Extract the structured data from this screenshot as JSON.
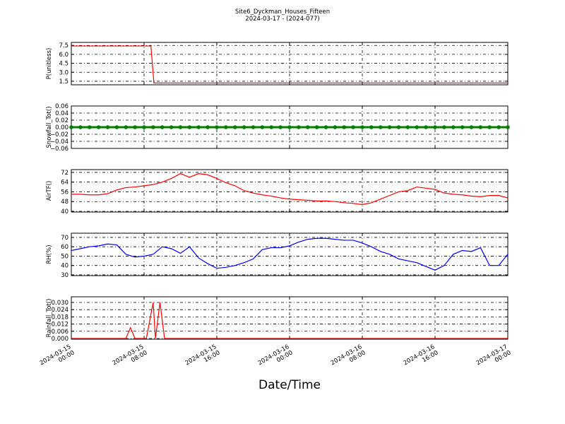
{
  "chart_data": [
    {
      "type": "line",
      "title": "Site6_Dyckman_Houses_Fifteen",
      "subtitle": "2024-03-17 - (2024-077)",
      "ylabel": "P(unitless)",
      "color": "#ff0000",
      "grid": true,
      "x": [
        "2024-03-15 00:00",
        "2024-03-15 08:45",
        "2024-03-15 09:05",
        "2024-03-17 00:00"
      ],
      "values": [
        7.4,
        7.4,
        1.2,
        1.2
      ],
      "xlim": [
        "2024-03-15 00:00",
        "2024-03-17 00:00"
      ],
      "xticks": [
        "2024-03-15 00:00",
        "2024-03-15 08:00",
        "2024-03-15 16:00",
        "2024-03-16 00:00",
        "2024-03-16 08:00",
        "2024-03-16 16:00",
        "2024-03-17 00:00"
      ],
      "ylim": [
        0.9,
        8.0
      ],
      "yticks": [
        1.5,
        {
          "value": 3,
          "label": "3.0"
        },
        4.5,
        {
          "value": 6,
          "label": "6.0"
        },
        7.5
      ]
    },
    {
      "type": "line",
      "ylabel": "Snowfall_Tot()",
      "color": "#008000",
      "marker": true,
      "grid": true,
      "x": [
        "2024-03-15 00:00",
        "2024-03-15 01:00",
        "2024-03-15 02:00",
        "2024-03-15 03:00",
        "2024-03-15 04:00",
        "2024-03-15 05:00",
        "2024-03-15 06:00",
        "2024-03-15 07:00",
        "2024-03-15 08:00",
        "2024-03-15 09:00",
        "2024-03-15 10:00",
        "2024-03-15 11:00",
        "2024-03-15 12:00",
        "2024-03-15 13:00",
        "2024-03-15 14:00",
        "2024-03-15 15:00",
        "2024-03-15 16:00",
        "2024-03-15 17:00",
        "2024-03-15 18:00",
        "2024-03-15 19:00",
        "2024-03-15 20:00",
        "2024-03-15 21:00",
        "2024-03-15 22:00",
        "2024-03-15 23:00",
        "2024-03-16 00:00",
        "2024-03-16 01:00",
        "2024-03-16 02:00",
        "2024-03-16 03:00",
        "2024-03-16 04:00",
        "2024-03-16 05:00",
        "2024-03-16 06:00",
        "2024-03-16 07:00",
        "2024-03-16 08:00",
        "2024-03-16 09:00",
        "2024-03-16 10:00",
        "2024-03-16 11:00",
        "2024-03-16 12:00",
        "2024-03-16 13:00",
        "2024-03-16 14:00",
        "2024-03-16 15:00",
        "2024-03-16 16:00",
        "2024-03-16 17:00",
        "2024-03-16 18:00",
        "2024-03-16 19:00",
        "2024-03-16 20:00",
        "2024-03-16 21:00",
        "2024-03-16 22:00",
        "2024-03-16 23:00",
        "2024-03-17 00:00"
      ],
      "values": [
        0,
        0,
        0,
        0,
        0,
        0,
        0,
        0,
        0,
        0,
        0,
        0,
        0,
        0,
        0,
        0,
        0,
        0,
        0,
        0,
        0,
        0,
        0,
        0,
        0,
        0,
        0,
        0,
        0,
        0,
        0,
        0,
        0,
        0,
        0,
        0,
        0,
        0,
        0,
        0,
        0,
        0,
        0,
        0,
        0,
        0,
        0,
        0,
        0
      ],
      "xlim": [
        "2024-03-15 00:00",
        "2024-03-17 00:00"
      ],
      "xticks": [
        "2024-03-15 00:00",
        "2024-03-15 08:00",
        "2024-03-15 16:00",
        "2024-03-16 00:00",
        "2024-03-16 08:00",
        "2024-03-16 16:00",
        "2024-03-17 00:00"
      ],
      "ylim": [
        -0.06,
        0.06
      ],
      "yticks": [
        {
          "value": -0.06,
          "label": "−0.06"
        },
        {
          "value": -0.04,
          "label": "−0.04"
        },
        {
          "value": -0.02,
          "label": "−0.02"
        },
        {
          "value": 0,
          "label": "0.00"
        },
        0.02,
        0.04,
        0.06
      ]
    },
    {
      "type": "line",
      "ylabel": "AirTF()",
      "color": "#ff0000",
      "grid": true,
      "x": [
        "2024-03-15 00:00",
        "2024-03-15 01:00",
        "2024-03-15 02:00",
        "2024-03-15 03:00",
        "2024-03-15 04:00",
        "2024-03-15 05:00",
        "2024-03-15 06:00",
        "2024-03-15 07:00",
        "2024-03-15 08:00",
        "2024-03-15 09:00",
        "2024-03-15 10:00",
        "2024-03-15 11:00",
        "2024-03-15 12:00",
        "2024-03-15 13:00",
        "2024-03-15 14:00",
        "2024-03-15 15:00",
        "2024-03-15 16:00",
        "2024-03-15 17:00",
        "2024-03-15 18:00",
        "2024-03-15 19:00",
        "2024-03-15 20:00",
        "2024-03-15 21:00",
        "2024-03-15 22:00",
        "2024-03-15 23:00",
        "2024-03-16 00:00",
        "2024-03-16 01:00",
        "2024-03-16 02:00",
        "2024-03-16 03:00",
        "2024-03-16 04:00",
        "2024-03-16 05:00",
        "2024-03-16 06:00",
        "2024-03-16 07:00",
        "2024-03-16 08:00",
        "2024-03-16 09:00",
        "2024-03-16 10:00",
        "2024-03-16 11:00",
        "2024-03-16 12:00",
        "2024-03-16 13:00",
        "2024-03-16 14:00",
        "2024-03-16 15:00",
        "2024-03-16 16:00",
        "2024-03-16 17:00",
        "2024-03-16 18:00",
        "2024-03-16 19:00",
        "2024-03-16 20:00",
        "2024-03-16 21:00",
        "2024-03-16 22:00",
        "2024-03-16 23:00",
        "2024-03-17 00:00"
      ],
      "values": [
        54,
        54,
        53.5,
        53.5,
        54.5,
        57.5,
        59.5,
        60,
        61,
        62,
        64,
        67,
        71,
        68,
        71,
        70,
        67,
        63.5,
        61,
        57,
        55,
        53.5,
        52.5,
        51,
        50,
        49.5,
        49,
        48.5,
        48.5,
        48,
        47,
        46.5,
        45.5,
        47,
        50,
        53,
        56,
        57,
        60,
        59,
        58,
        55,
        54,
        53.5,
        52.5,
        52,
        53,
        53,
        51
      ],
      "xlim": [
        "2024-03-15 00:00",
        "2024-03-17 00:00"
      ],
      "xticks": [
        "2024-03-15 00:00",
        "2024-03-15 08:00",
        "2024-03-15 16:00",
        "2024-03-16 00:00",
        "2024-03-16 08:00",
        "2024-03-16 16:00",
        "2024-03-17 00:00"
      ],
      "ylim": [
        39.4,
        74.3
      ],
      "yticks": [
        40,
        48,
        56,
        64,
        72
      ]
    },
    {
      "type": "line",
      "ylabel": "RH(%)",
      "color": "#0000ff",
      "grid": true,
      "x": [
        "2024-03-15 00:00",
        "2024-03-15 01:00",
        "2024-03-15 02:00",
        "2024-03-15 03:00",
        "2024-03-15 04:00",
        "2024-03-15 05:00",
        "2024-03-15 06:00",
        "2024-03-15 07:00",
        "2024-03-15 08:00",
        "2024-03-15 09:00",
        "2024-03-15 10:00",
        "2024-03-15 11:00",
        "2024-03-15 12:00",
        "2024-03-15 13:00",
        "2024-03-15 14:00",
        "2024-03-15 15:00",
        "2024-03-15 16:00",
        "2024-03-15 17:00",
        "2024-03-15 18:00",
        "2024-03-15 19:00",
        "2024-03-15 20:00",
        "2024-03-15 21:00",
        "2024-03-15 22:00",
        "2024-03-15 23:00",
        "2024-03-16 00:00",
        "2024-03-16 01:00",
        "2024-03-16 02:00",
        "2024-03-16 03:00",
        "2024-03-16 04:00",
        "2024-03-16 05:00",
        "2024-03-16 06:00",
        "2024-03-16 07:00",
        "2024-03-16 08:00",
        "2024-03-16 09:00",
        "2024-03-16 10:00",
        "2024-03-16 11:00",
        "2024-03-16 12:00",
        "2024-03-16 13:00",
        "2024-03-16 14:00",
        "2024-03-16 15:00",
        "2024-03-16 16:00",
        "2024-03-16 17:00",
        "2024-03-16 18:00",
        "2024-03-16 19:00",
        "2024-03-16 20:00",
        "2024-03-16 21:00",
        "2024-03-16 22:00",
        "2024-03-16 23:00",
        "2024-03-17 00:00"
      ],
      "values": [
        56,
        58,
        60,
        61,
        63,
        62,
        52,
        49,
        50,
        52,
        60,
        58,
        53,
        60,
        48,
        42,
        37,
        38,
        40,
        43,
        47,
        57,
        59,
        59,
        61,
        65,
        68,
        69,
        69,
        68,
        67,
        67,
        64,
        60,
        55,
        52,
        47,
        45,
        43,
        39,
        35,
        40,
        52,
        56,
        55,
        59,
        40,
        40,
        52
      ],
      "xlim": [
        "2024-03-15 00:00",
        "2024-03-17 00:00"
      ],
      "xticks": [
        "2024-03-15 00:00",
        "2024-03-15 08:00",
        "2024-03-15 16:00",
        "2024-03-16 00:00",
        "2024-03-16 08:00",
        "2024-03-16 16:00",
        "2024-03-17 00:00"
      ],
      "ylim": [
        29.2,
        74.5
      ],
      "yticks": [
        30,
        40,
        50,
        60,
        70
      ]
    },
    {
      "type": "line",
      "ylabel": "Rainfall_Tot()",
      "xlabel": "Date/Time",
      "color": "#ff0000",
      "grid": true,
      "x": [
        "2024-03-15 00:00",
        "2024-03-15 06:00",
        "2024-03-15 06:30",
        "2024-03-15 07:00",
        "2024-03-15 08:15",
        "2024-03-15 09:00",
        "2024-03-15 09:15",
        "2024-03-15 09:45",
        "2024-03-15 10:15",
        "2024-03-17 00:00"
      ],
      "values": [
        0,
        0,
        0.009,
        0,
        0,
        0.03,
        0,
        0.03,
        0,
        0
      ],
      "xlim": [
        "2024-03-15 00:00",
        "2024-03-17 00:00"
      ],
      "xticks": [
        {
          "value": "2024-03-15 00:00",
          "label": "2024-03-15\n00:00"
        },
        {
          "value": "2024-03-15 08:00",
          "label": "2024-03-15\n08:00"
        },
        {
          "value": "2024-03-15 16:00",
          "label": "2024-03-15\n16:00"
        },
        {
          "value": "2024-03-16 00:00",
          "label": "2024-03-16\n00:00"
        },
        {
          "value": "2024-03-16 08:00",
          "label": "2024-03-16\n08:00"
        },
        {
          "value": "2024-03-16 16:00",
          "label": "2024-03-16\n16:00"
        },
        {
          "value": "2024-03-17 00:00",
          "label": "2024-03-17\n00:00"
        }
      ],
      "ylim": [
        -0.0006,
        0.0347
      ],
      "yticks": [
        {
          "value": 0,
          "label": "0.000"
        },
        0.006,
        0.012,
        0.018,
        0.024,
        {
          "value": 0.03,
          "label": "0.030"
        }
      ]
    }
  ]
}
